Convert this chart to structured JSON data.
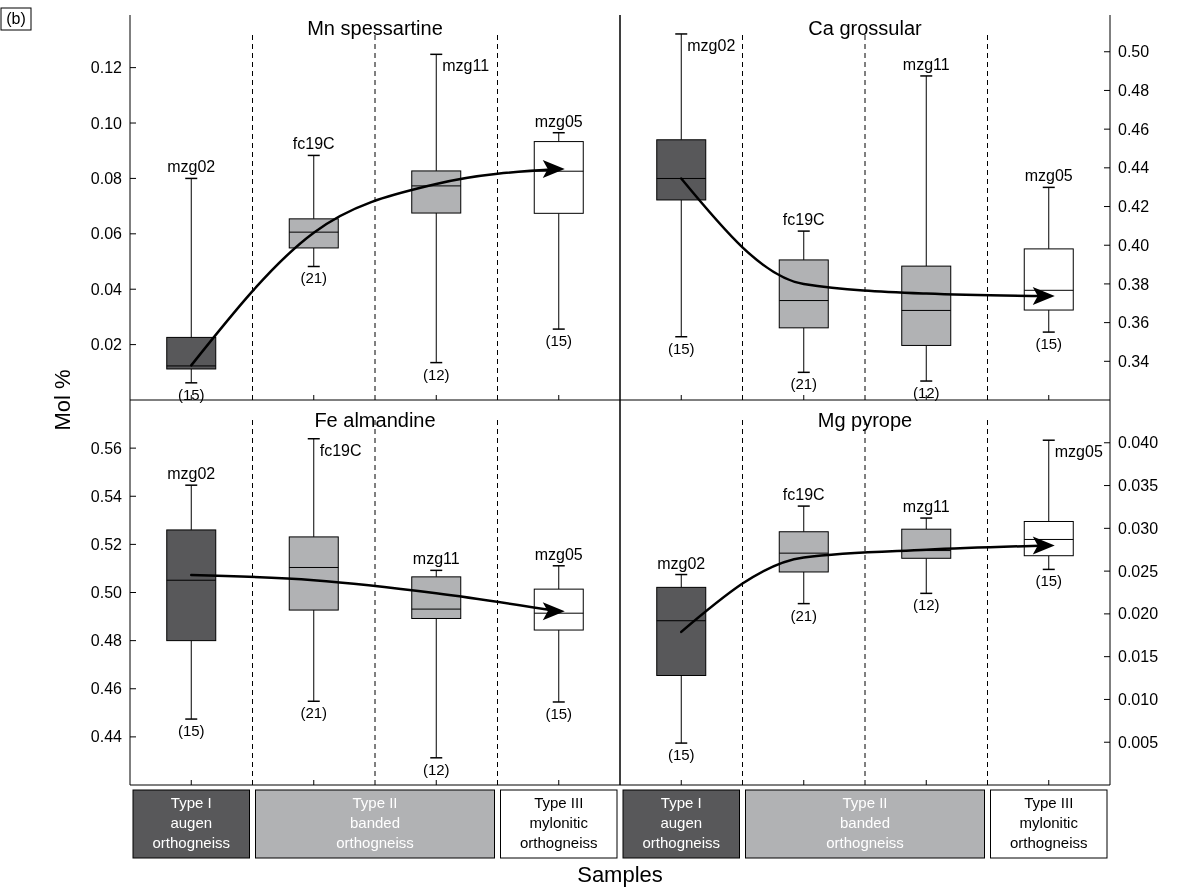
{
  "chart_data": [
    {
      "type": "box",
      "title": "Mn spessartine",
      "ylabel": "Mol %",
      "categories": [
        "mzg02",
        "fc19C",
        "mzg11",
        "mzg05"
      ],
      "colors": [
        "#58585a",
        "#b1b2b4",
        "#b1b2b4",
        "#ffffff"
      ],
      "grid": "x",
      "ylim": [
        0,
        0.139
      ],
      "yticks": [
        0.02,
        0.04,
        0.06,
        0.08,
        {
          "value": 0.1,
          "label": "0.10"
        },
        0.12
      ],
      "boxes": [
        {
          "low": 0.0062,
          "q1": 0.0112,
          "median": 0.0123,
          "q3": 0.0226,
          "high": 0.08
        },
        {
          "low": 0.0482,
          "q1": 0.0549,
          "median": 0.0606,
          "q3": 0.0654,
          "high": 0.0883
        },
        {
          "low": 0.0135,
          "q1": 0.0675,
          "median": 0.0773,
          "q3": 0.0827,
          "high": 0.1248
        },
        {
          "low": 0.0256,
          "q1": 0.0674,
          "median": 0.0826,
          "q3": 0.0933,
          "high": 0.0965
        }
      ],
      "series": [
        {
          "type": "line",
          "color": "#000000",
          "values": [
            0.0125,
            0.0604,
            0.078,
            0.0834
          ]
        }
      ],
      "annotations": [
        "(b)",
        {
          "text": "(15)",
          "x": "mzg02",
          "y": 0.0062
        },
        {
          "text": "(21)",
          "x": "fc19C",
          "y": 0.0482
        },
        {
          "text": "(12)",
          "x": "mzg11",
          "y": 0.0135
        },
        {
          "text": "(15)",
          "x": "mzg05",
          "y": 0.0256
        }
      ]
    },
    {
      "type": "box",
      "title": "Ca grossular",
      "categories": [
        "mzg02",
        "fc19C",
        "mzg11",
        "mzg05"
      ],
      "colors": [
        "#58585a",
        "#b1b2b4",
        "#b1b2b4",
        "#ffffff"
      ],
      "grid": "x",
      "ylim": [
        0.32,
        0.519
      ],
      "yticks": [
        0.34,
        0.36,
        0.38,
        {
          "value": 0.4,
          "label": "0.40"
        },
        0.42,
        0.44,
        0.46,
        0.48,
        {
          "value": 0.5,
          "label": "0.50"
        }
      ],
      "boxes": [
        {
          "low": 0.3527,
          "q1": 0.4234,
          "median": 0.4345,
          "q3": 0.4545,
          "high": 0.5092
        },
        {
          "low": 0.3343,
          "q1": 0.3573,
          "median": 0.3714,
          "q3": 0.3924,
          "high": 0.4073
        },
        {
          "low": 0.3298,
          "q1": 0.3482,
          "median": 0.3663,
          "q3": 0.3892,
          "high": 0.4875
        },
        {
          "low": 0.3551,
          "q1": 0.3665,
          "median": 0.3767,
          "q3": 0.3981,
          "high": 0.4299
        }
      ],
      "series": [
        {
          "type": "line",
          "color": "#000000",
          "values": [
            0.4345,
            0.38,
            0.375,
            0.3737
          ]
        }
      ],
      "annotations": [
        {
          "text": "(15)",
          "x": "mzg02",
          "y": 0.3527
        },
        {
          "text": "(21)",
          "x": "fc19C",
          "y": 0.3343
        },
        {
          "text": "(12)",
          "x": "mzg11",
          "y": 0.3298
        },
        {
          "text": "(15)",
          "x": "mzg05",
          "y": 0.3551
        }
      ]
    },
    {
      "type": "box",
      "title": "Fe almandine",
      "xlabel": "Samples",
      "categories": [
        "mzg02",
        "fc19C",
        "mzg11",
        "mzg05"
      ],
      "colors": [
        "#58585a",
        "#b1b2b4",
        "#b1b2b4",
        "#ffffff"
      ],
      "grid": "x",
      "ylim": [
        0.42,
        0.58
      ],
      "yticks": [
        0.44,
        0.46,
        0.48,
        {
          "value": 0.5,
          "label": "0.50"
        },
        0.52,
        0.54,
        0.56
      ],
      "boxes": [
        {
          "low": 0.4474,
          "q1": 0.48,
          "median": 0.5051,
          "q3": 0.526,
          "high": 0.5446
        },
        {
          "low": 0.4548,
          "q1": 0.4927,
          "median": 0.5104,
          "q3": 0.5231,
          "high": 0.5639
        },
        {
          "low": 0.4313,
          "q1": 0.4892,
          "median": 0.4931,
          "q3": 0.5065,
          "high": 0.5092
        },
        {
          "low": 0.4545,
          "q1": 0.4844,
          "median": 0.4914,
          "q3": 0.5014,
          "high": 0.5111
        }
      ],
      "series": [
        {
          "type": "line",
          "color": "#000000",
          "values": [
            0.5073,
            0.5051,
            0.4997,
            0.4922
          ]
        }
      ],
      "annotations": [
        "Type I\naugen\northogneiss",
        "Type II\nbanded\northogneiss",
        "Type III\nmylonitic\northogneiss",
        {
          "text": "(15)",
          "x": "mzg02",
          "y": 0.4474
        },
        {
          "text": "(21)",
          "x": "fc19C",
          "y": 0.4548
        },
        {
          "text": "(12)",
          "x": "mzg11",
          "y": 0.4313
        },
        {
          "text": "(15)",
          "x": "mzg05",
          "y": 0.4545
        }
      ]
    },
    {
      "type": "box",
      "title": "Mg pyrope",
      "categories": [
        "mzg02",
        "fc19C",
        "mzg11",
        "mzg05"
      ],
      "colors": [
        "#58585a",
        "#b1b2b4",
        "#b1b2b4",
        "#ffffff"
      ],
      "grid": "x",
      "ylim": [
        0,
        0.045
      ],
      "yticks": [
        0.005,
        {
          "value": 0.01,
          "label": "0.010"
        },
        0.015,
        {
          "value": 0.02,
          "label": "0.020"
        },
        0.025,
        {
          "value": 0.03,
          "label": "0.030"
        },
        0.035,
        {
          "value": 0.04,
          "label": "0.040"
        }
      ],
      "boxes": [
        {
          "low": 0.0049,
          "q1": 0.0128,
          "median": 0.0192,
          "q3": 0.0231,
          "high": 0.0246
        },
        {
          "low": 0.0212,
          "q1": 0.0249,
          "median": 0.0271,
          "q3": 0.0296,
          "high": 0.0326
        },
        {
          "low": 0.0224,
          "q1": 0.0265,
          "median": 0.0274,
          "q3": 0.0299,
          "high": 0.0312
        },
        {
          "low": 0.0252,
          "q1": 0.0268,
          "median": 0.0287,
          "q3": 0.0308,
          "high": 0.0403
        }
      ],
      "series": [
        {
          "type": "line",
          "color": "#000000",
          "values": [
            0.0179,
            0.0266,
            0.0275,
            0.028
          ]
        }
      ],
      "annotations": [
        "Type I\naugen\northogneiss",
        "Type II\nbanded\northogneiss",
        "Type III\nmylonitic\northogneiss",
        {
          "text": "(15)",
          "x": "mzg02",
          "y": 0.0049
        },
        {
          "text": "(21)",
          "x": "fc19C",
          "y": 0.0212
        },
        {
          "text": "(12)",
          "x": "mzg11",
          "y": 0.0224
        },
        {
          "text": "(15)",
          "x": "mzg05",
          "y": 0.0252
        }
      ]
    }
  ]
}
